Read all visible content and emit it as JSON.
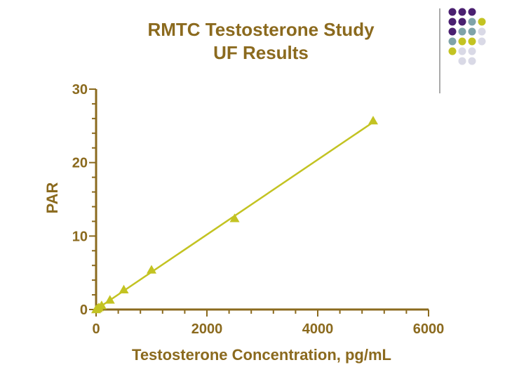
{
  "colors": {
    "text": "#8B6A1E",
    "axis": "#8B6A1E",
    "series": "#C3C322",
    "deco_purple": "#4A2070",
    "deco_teal": "#7FA3A8",
    "deco_yellow": "#C3C322",
    "deco_lavender": "#D9D9E6"
  },
  "chart_data": {
    "type": "scatter",
    "title": "RMTC Testosterone Study",
    "subtitle": "UF Results",
    "xlabel": "Testosterone Concentration, pg/mL",
    "ylabel": "PAR",
    "xlim": [
      0,
      6000
    ],
    "ylim": [
      0,
      30
    ],
    "xticks": [
      "0",
      "2000",
      "4000",
      "6000"
    ],
    "yticks": [
      "0",
      "10",
      "20",
      "30"
    ],
    "grid": false,
    "series": [
      {
        "marker": "triangle",
        "trendline": "linear",
        "x": [
          0,
          25,
          50,
          100,
          250,
          500,
          1000,
          2500,
          5000
        ],
        "y": [
          0.0,
          0.13,
          0.27,
          0.55,
          1.3,
          2.7,
          5.4,
          12.4,
          25.7
        ]
      }
    ],
    "trendline": {
      "x": [
        0,
        5000
      ],
      "y": [
        0.0,
        25.5
      ]
    }
  }
}
